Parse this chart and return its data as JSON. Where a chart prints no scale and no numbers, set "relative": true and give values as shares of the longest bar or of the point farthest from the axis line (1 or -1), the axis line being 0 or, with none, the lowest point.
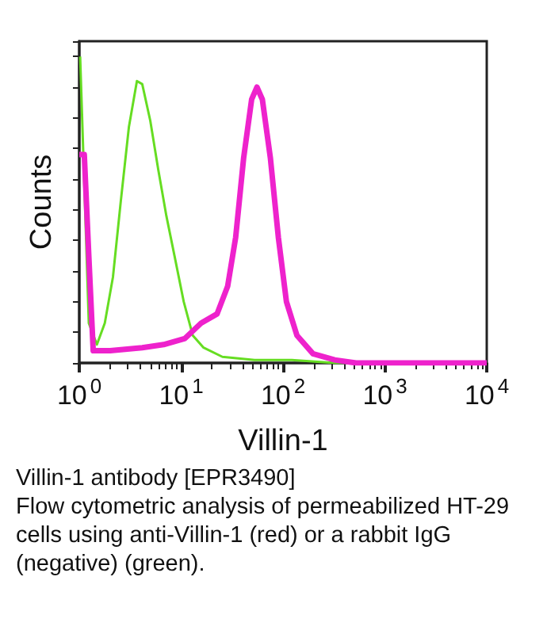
{
  "chart_data": {
    "type": "line",
    "relative": true,
    "log": "x",
    "xlabel": "Villin-1",
    "ylabel": "Counts",
    "xlim": [
      1,
      10000
    ],
    "xticks": [
      {
        "value": 1,
        "label": "10$^{0}$"
      },
      {
        "value": 10,
        "label": "10$^{1}$"
      },
      {
        "value": 100,
        "label": "10$^{2}$"
      },
      {
        "value": 1000,
        "label": "10$^{3}$"
      },
      {
        "value": 10000,
        "label": "10$^{4}$"
      }
    ],
    "grid": false,
    "marker": "none",
    "series": [
      {
        "color": "#ee22cc",
        "x": [
          1.0,
          1.12,
          1.24,
          1.37,
          2.01,
          4.15,
          6.73,
          10.9,
          15.7,
          22.5,
          28.6,
          34.3,
          41.1,
          49.2,
          55.5,
          62.7,
          75.1,
          90.0,
          108,
          137,
          197,
          322,
          521,
          10000
        ],
        "values": [
          0.68,
          0.68,
          0.35,
          0.04,
          0.04,
          0.05,
          0.06,
          0.08,
          0.13,
          0.16,
          0.25,
          0.41,
          0.67,
          0.86,
          0.9,
          0.86,
          0.67,
          0.41,
          0.2,
          0.09,
          0.03,
          0.01,
          0,
          0
        ]
      },
      {
        "color": "#66dd22",
        "x": [
          1.02,
          1.24,
          1.49,
          1.78,
          2.14,
          2.56,
          3.07,
          3.68,
          4.15,
          4.98,
          5.97,
          7.16,
          8.6,
          10.6,
          13.0,
          16.6,
          25.4,
          52.5,
          122,
          322,
          10000
        ],
        "values": [
          1.0,
          0.13,
          0.06,
          0.13,
          0.28,
          0.53,
          0.77,
          0.92,
          0.91,
          0.79,
          0.63,
          0.48,
          0.35,
          0.2,
          0.09,
          0.05,
          0.02,
          0.01,
          0.01,
          0,
          0
        ]
      }
    ],
    "annotations": [
      "Villin-1 antibody [EPR3490]",
      "Flow cytometric analysis of permeabilized HT-29 cells using anti-Villin-1 (red) or a rabbit IgG (negative) (green)."
    ]
  }
}
